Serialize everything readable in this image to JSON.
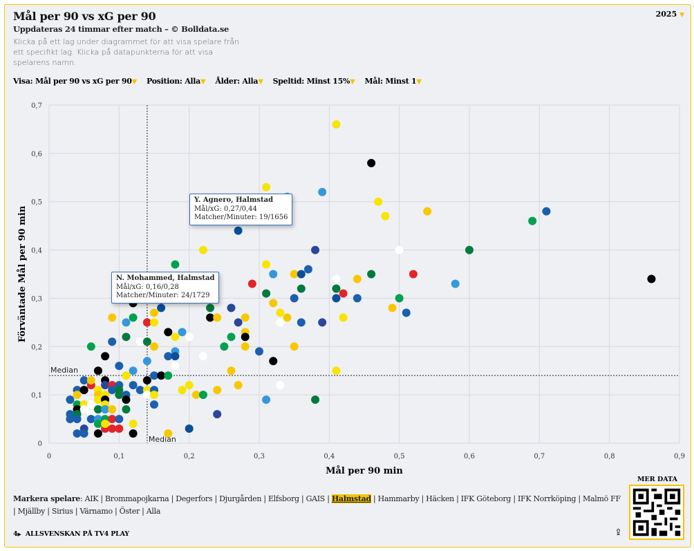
{
  "header": {
    "title": "Mål per 90 vs xG per 90",
    "year": "2025",
    "subtitle": "Uppdateras 24 timmar efter match – © Bolldata.se",
    "description": "Klicka på ett lag under diagrammet för att visa spelare från ett specifikt lag. Klicka på datapunkterna för att visa spelarens namn."
  },
  "filters": [
    {
      "label": "Visa:",
      "value": "Mål per 90 vs xG per 90"
    },
    {
      "label": "Position:",
      "value": "Alla"
    },
    {
      "label": "Ålder:",
      "value": "Alla"
    },
    {
      "label": "Speltid:",
      "value": "Minst 15%"
    },
    {
      "label": "Mål:",
      "value": "Minst 1"
    }
  ],
  "tooltips": [
    {
      "name": "Y. Agnero, Halmstad",
      "line1": "Mål/xG: 0,27/0,44",
      "line2": "Matcher/Minuter: 19/1656"
    },
    {
      "name": "N. Mohammed, Halmstad",
      "line1": "Mål/xG: 0,16/0,28",
      "line2": "Matcher/Minuter: 24/1729"
    }
  ],
  "legend": {
    "label": "Markera spelare",
    "teams": [
      "AIK",
      "Brommapojkarna",
      "Degerfors",
      "Djurgården",
      "Elfsborg",
      "GAIS",
      "Halmstad",
      "Hammarby",
      "Häcken",
      "IFK Göteborg",
      "IFK Norrköping",
      "Malmö FF",
      "Mjällby",
      "Sirius",
      "Värnamo",
      "Öster",
      "Alla"
    ],
    "active": "Halmstad"
  },
  "footer": {
    "tv4": "ALLSVENSKAN PÅ TV4 PLAY",
    "mer_data": "MER DATA"
  },
  "colors": {
    "Y": "#f7e400",
    "O": "#f7c800",
    "B": "#1b5fae",
    "L": "#3498db",
    "D": "#0a4f9c",
    "G": "#00a14f",
    "E": "#007a3d",
    "K": "#000000",
    "W": "#ffffff",
    "R": "#e2242b",
    "N": "#2a479b"
  },
  "chart_data": {
    "type": "scatter",
    "title": "Mål per 90 vs xG per 90",
    "xlabel": "Mål per 90 min",
    "ylabel": "Förväntade Mål per 90 min",
    "xlim": [
      0,
      0.9
    ],
    "ylim": [
      0,
      0.7
    ],
    "xticks": [
      "0",
      "0,1",
      "0,2",
      "0,3",
      "0,4",
      "0,5",
      "0,6",
      "0,7",
      "0,8",
      "0,9"
    ],
    "yticks": [
      "0",
      "0,1",
      "0,2",
      "0,3",
      "0,4",
      "0,5",
      "0,6",
      "0,7"
    ],
    "grid": true,
    "median": {
      "x": 0.14,
      "y": 0.14,
      "label": "Median"
    },
    "points": [
      [
        0.41,
        0.66,
        "Y"
      ],
      [
        0.46,
        0.58,
        "K"
      ],
      [
        0.31,
        0.53,
        "Y"
      ],
      [
        0.39,
        0.52,
        "L"
      ],
      [
        0.34,
        0.51,
        "L"
      ],
      [
        0.47,
        0.5,
        "Y"
      ],
      [
        0.48,
        0.47,
        "Y"
      ],
      [
        0.54,
        0.48,
        "O"
      ],
      [
        0.71,
        0.48,
        "B"
      ],
      [
        0.69,
        0.46,
        "G"
      ],
      [
        0.27,
        0.44,
        "D"
      ],
      [
        0.22,
        0.4,
        "Y"
      ],
      [
        0.38,
        0.4,
        "N"
      ],
      [
        0.5,
        0.4,
        "W"
      ],
      [
        0.6,
        0.4,
        "E"
      ],
      [
        0.18,
        0.37,
        "G"
      ],
      [
        0.31,
        0.37,
        "Y"
      ],
      [
        0.37,
        0.36,
        "B"
      ],
      [
        0.32,
        0.35,
        "L"
      ],
      [
        0.35,
        0.35,
        "O"
      ],
      [
        0.36,
        0.35,
        "D"
      ],
      [
        0.46,
        0.35,
        "E"
      ],
      [
        0.52,
        0.35,
        "R"
      ],
      [
        0.86,
        0.34,
        "K"
      ],
      [
        0.41,
        0.34,
        "W"
      ],
      [
        0.44,
        0.34,
        "O"
      ],
      [
        0.29,
        0.33,
        "R"
      ],
      [
        0.58,
        0.33,
        "L"
      ],
      [
        0.36,
        0.32,
        "E"
      ],
      [
        0.41,
        0.32,
        "E"
      ],
      [
        0.42,
        0.31,
        "R"
      ],
      [
        0.31,
        0.31,
        "E"
      ],
      [
        0.35,
        0.3,
        "B"
      ],
      [
        0.41,
        0.3,
        "D"
      ],
      [
        0.44,
        0.3,
        "B"
      ],
      [
        0.5,
        0.3,
        "G"
      ],
      [
        0.32,
        0.29,
        "O"
      ],
      [
        0.23,
        0.28,
        "E"
      ],
      [
        0.26,
        0.28,
        "N"
      ],
      [
        0.16,
        0.28,
        "D"
      ],
      [
        0.12,
        0.29,
        "K"
      ],
      [
        0.51,
        0.27,
        "B"
      ],
      [
        0.33,
        0.27,
        "Y"
      ],
      [
        0.15,
        0.27,
        "O"
      ],
      [
        0.09,
        0.26,
        "O"
      ],
      [
        0.12,
        0.26,
        "G"
      ],
      [
        0.23,
        0.26,
        "K"
      ],
      [
        0.24,
        0.26,
        "O"
      ],
      [
        0.28,
        0.26,
        "O"
      ],
      [
        0.34,
        0.26,
        "O"
      ],
      [
        0.42,
        0.26,
        "Y"
      ],
      [
        0.49,
        0.28,
        "O"
      ],
      [
        0.11,
        0.25,
        "L"
      ],
      [
        0.14,
        0.25,
        "R"
      ],
      [
        0.15,
        0.25,
        "Y"
      ],
      [
        0.27,
        0.25,
        "N"
      ],
      [
        0.33,
        0.25,
        "W"
      ],
      [
        0.36,
        0.25,
        "B"
      ],
      [
        0.39,
        0.25,
        "N"
      ],
      [
        0.17,
        0.23,
        "K"
      ],
      [
        0.19,
        0.23,
        "L"
      ],
      [
        0.28,
        0.23,
        "O"
      ],
      [
        0.11,
        0.22,
        "E"
      ],
      [
        0.18,
        0.22,
        "Y"
      ],
      [
        0.2,
        0.22,
        "W"
      ],
      [
        0.28,
        0.22,
        "K"
      ],
      [
        0.26,
        0.22,
        "G"
      ],
      [
        0.09,
        0.21,
        "B"
      ],
      [
        0.13,
        0.21,
        "W"
      ],
      [
        0.14,
        0.21,
        "E"
      ],
      [
        0.25,
        0.2,
        "G"
      ],
      [
        0.06,
        0.2,
        "G"
      ],
      [
        0.15,
        0.2,
        "O"
      ],
      [
        0.28,
        0.2,
        "O"
      ],
      [
        0.35,
        0.2,
        "O"
      ],
      [
        0.3,
        0.19,
        "B"
      ],
      [
        0.18,
        0.19,
        "L"
      ],
      [
        0.08,
        0.18,
        "K"
      ],
      [
        0.17,
        0.18,
        "B"
      ],
      [
        0.18,
        0.18,
        "D"
      ],
      [
        0.22,
        0.18,
        "W"
      ],
      [
        0.14,
        0.17,
        "L"
      ],
      [
        0.32,
        0.17,
        "K"
      ],
      [
        0.1,
        0.16,
        "B"
      ],
      [
        0.18,
        0.16,
        "W"
      ],
      [
        0.07,
        0.15,
        "K"
      ],
      [
        0.12,
        0.15,
        "L"
      ],
      [
        0.26,
        0.15,
        "O"
      ],
      [
        0.41,
        0.15,
        "Y"
      ],
      [
        0.11,
        0.14,
        "Y"
      ],
      [
        0.15,
        0.14,
        "B"
      ],
      [
        0.16,
        0.14,
        "K"
      ],
      [
        0.17,
        0.14,
        "G"
      ],
      [
        0.14,
        0.13,
        "K"
      ],
      [
        0.05,
        0.13,
        "B"
      ],
      [
        0.08,
        0.13,
        "K"
      ],
      [
        0.06,
        0.12,
        "R"
      ],
      [
        0.06,
        0.13,
        "O"
      ],
      [
        0.08,
        0.12,
        "N"
      ],
      [
        0.09,
        0.12,
        "R"
      ],
      [
        0.1,
        0.12,
        "B"
      ],
      [
        0.12,
        0.12,
        "B"
      ],
      [
        0.2,
        0.12,
        "Y"
      ],
      [
        0.27,
        0.12,
        "O"
      ],
      [
        0.33,
        0.12,
        "W"
      ],
      [
        0.04,
        0.11,
        "B"
      ],
      [
        0.05,
        0.11,
        "K"
      ],
      [
        0.07,
        0.11,
        "Y"
      ],
      [
        0.09,
        0.11,
        "B"
      ],
      [
        0.1,
        0.11,
        "E"
      ],
      [
        0.13,
        0.11,
        "B"
      ],
      [
        0.14,
        0.11,
        "Y"
      ],
      [
        0.15,
        0.11,
        "B"
      ],
      [
        0.19,
        0.11,
        "Y"
      ],
      [
        0.24,
        0.11,
        "O"
      ],
      [
        0.04,
        0.1,
        "O"
      ],
      [
        0.07,
        0.1,
        "O"
      ],
      [
        0.08,
        0.1,
        "Y"
      ],
      [
        0.1,
        0.1,
        "E"
      ],
      [
        0.11,
        0.1,
        "B"
      ],
      [
        0.14,
        0.1,
        "W"
      ],
      [
        0.15,
        0.1,
        "Y"
      ],
      [
        0.21,
        0.1,
        "O"
      ],
      [
        0.22,
        0.1,
        "G"
      ],
      [
        0.03,
        0.09,
        "B"
      ],
      [
        0.07,
        0.09,
        "Y"
      ],
      [
        0.08,
        0.09,
        "K"
      ],
      [
        0.11,
        0.09,
        "K"
      ],
      [
        0.31,
        0.09,
        "L"
      ],
      [
        0.38,
        0.09,
        "E"
      ],
      [
        0.04,
        0.08,
        "G"
      ],
      [
        0.05,
        0.08,
        "Y"
      ],
      [
        0.06,
        0.08,
        "W"
      ],
      [
        0.08,
        0.08,
        "Y"
      ],
      [
        0.15,
        0.08,
        "B"
      ],
      [
        0.04,
        0.07,
        "K"
      ],
      [
        0.05,
        0.07,
        "W"
      ],
      [
        0.07,
        0.07,
        "E"
      ],
      [
        0.08,
        0.07,
        "L"
      ],
      [
        0.09,
        0.07,
        "O"
      ],
      [
        0.11,
        0.07,
        "E"
      ],
      [
        0.03,
        0.06,
        "B"
      ],
      [
        0.04,
        0.06,
        "E"
      ],
      [
        0.06,
        0.06,
        "W"
      ],
      [
        0.24,
        0.06,
        "N"
      ],
      [
        0.03,
        0.05,
        "B"
      ],
      [
        0.04,
        0.05,
        "B"
      ],
      [
        0.06,
        0.05,
        "B"
      ],
      [
        0.07,
        0.05,
        "L"
      ],
      [
        0.08,
        0.05,
        "G"
      ],
      [
        0.09,
        0.05,
        "R"
      ],
      [
        0.1,
        0.05,
        "B"
      ],
      [
        0.05,
        0.03,
        "N"
      ],
      [
        0.07,
        0.04,
        "G"
      ],
      [
        0.08,
        0.03,
        "R"
      ],
      [
        0.09,
        0.03,
        "R"
      ],
      [
        0.1,
        0.03,
        "R"
      ],
      [
        0.08,
        0.04,
        "Y"
      ],
      [
        0.12,
        0.04,
        "Y"
      ],
      [
        0.04,
        0.02,
        "B"
      ],
      [
        0.05,
        0.02,
        "B"
      ],
      [
        0.07,
        0.02,
        "K"
      ],
      [
        0.12,
        0.02,
        "K"
      ],
      [
        0.17,
        0.02,
        "O"
      ],
      [
        0.2,
        0.03,
        "D"
      ]
    ]
  }
}
